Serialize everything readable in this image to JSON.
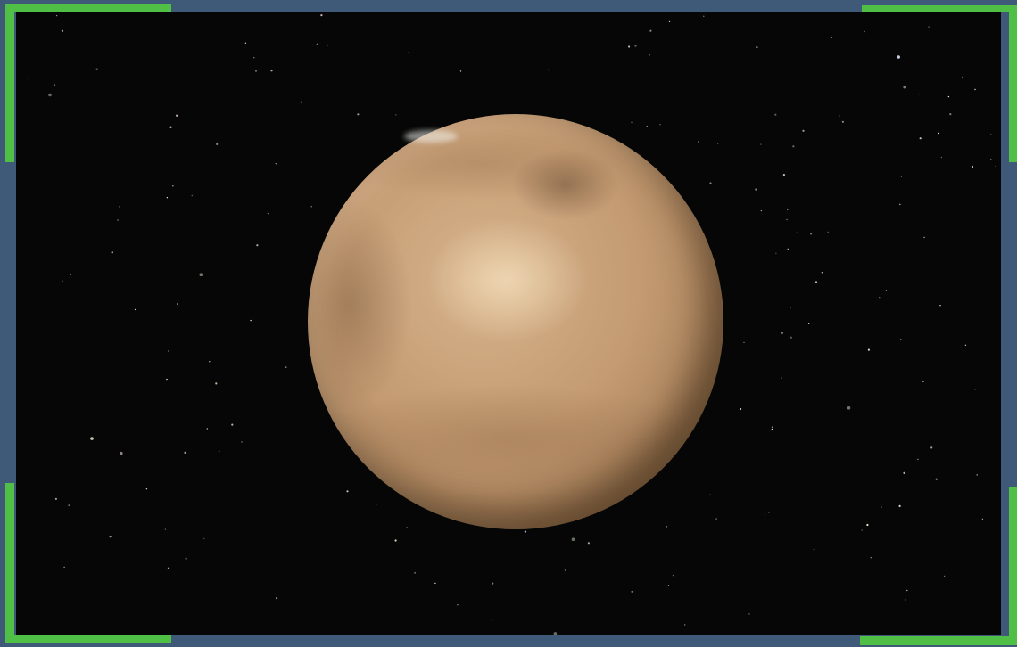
{
  "scene": {
    "subject": "",
    "frame_color": "#3f5a79",
    "accent_color": "#4fbf45",
    "space_color": "#060606",
    "planet_colors": {
      "light": "#d6b38b",
      "mid": "#c49b72",
      "dark": "#7a5a3c"
    }
  }
}
